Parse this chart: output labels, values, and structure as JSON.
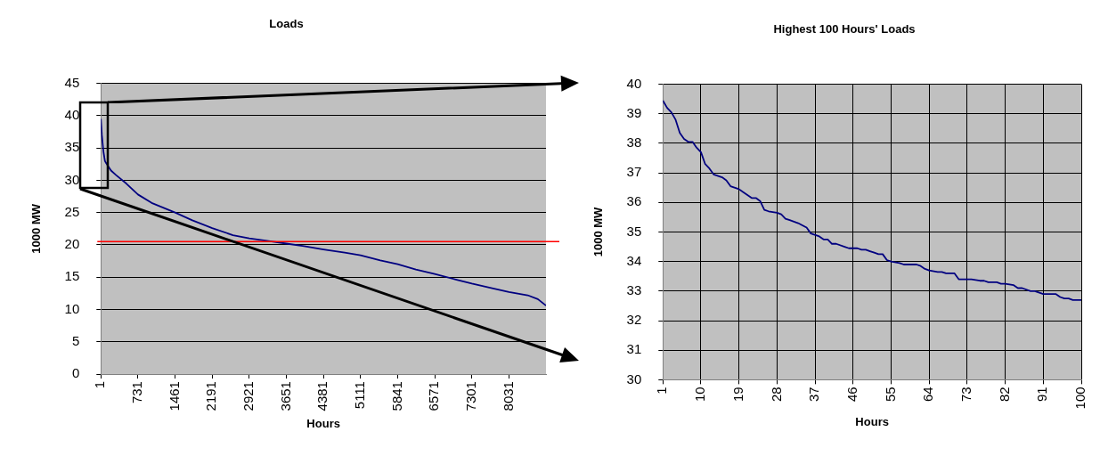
{
  "chart_data": [
    {
      "type": "line",
      "title": "Loads",
      "xlabel": "Hours",
      "ylabel": "1000 MW",
      "x": [
        1,
        20,
        50,
        80,
        100,
        200,
        300,
        500,
        730,
        1000,
        1461,
        1800,
        2191,
        2600,
        2921,
        3300,
        3651,
        4000,
        4381,
        4800,
        5111,
        5500,
        5841,
        6200,
        6571,
        7000,
        7301,
        7700,
        8031,
        8400,
        8600,
        8760
      ],
      "series": [
        {
          "color": "#000080",
          "values": [
            39.5,
            37,
            34.5,
            33,
            32.7,
            31.5,
            30.8,
            29.5,
            27.8,
            26.5,
            25,
            23.8,
            22.6,
            21.5,
            21,
            20.6,
            20.2,
            19.8,
            19.3,
            18.8,
            18.4,
            17.6,
            17,
            16.2,
            15.5,
            14.6,
            14,
            13.3,
            12.7,
            12.2,
            11.6,
            10.6
          ]
        }
      ],
      "xlim": [
        1,
        8760
      ],
      "xticks": [
        1,
        731,
        1461,
        2191,
        2921,
        3651,
        4381,
        5111,
        5841,
        6571,
        7301,
        8031
      ],
      "ylim": [
        0,
        45
      ],
      "yticks": [
        0,
        5,
        10,
        15,
        20,
        25,
        30,
        35,
        40,
        45
      ],
      "ref_lines": [
        {
          "axis": "y",
          "value": 20.5,
          "color": "#ff0000"
        }
      ],
      "grid": "y",
      "legend": false,
      "marker": "none",
      "line_style": "solid"
    },
    {
      "type": "line",
      "title": "Highest 100 Hours' Loads",
      "xlabel": "Hours",
      "ylabel": "1000 MW",
      "x": [
        1,
        2,
        3,
        4,
        5,
        6,
        7,
        8,
        9,
        10,
        11,
        12,
        13,
        15,
        16,
        17,
        19,
        20,
        22,
        23,
        24,
        25,
        26,
        28,
        29,
        30,
        31,
        33,
        35,
        36,
        38,
        39,
        40,
        41,
        42,
        44,
        45,
        47,
        48,
        49,
        50,
        51,
        52,
        53,
        54,
        55,
        57,
        58,
        60,
        61,
        62,
        63,
        64,
        66,
        67,
        68,
        70,
        71,
        72,
        74,
        76,
        77,
        78,
        80,
        81,
        82,
        84,
        85,
        86,
        88,
        89,
        91,
        93,
        94,
        95,
        96,
        97,
        98,
        100
      ],
      "series": [
        {
          "color": "#000080",
          "values": [
            39.45,
            39.2,
            39.05,
            38.8,
            38.35,
            38.15,
            38.05,
            38.05,
            37.85,
            37.7,
            37.3,
            37.15,
            36.95,
            36.85,
            36.75,
            36.55,
            36.45,
            36.35,
            36.15,
            36.15,
            36.05,
            35.75,
            35.7,
            35.65,
            35.6,
            35.45,
            35.4,
            35.3,
            35.15,
            34.95,
            34.85,
            34.75,
            34.75,
            34.6,
            34.6,
            34.5,
            34.45,
            34.45,
            34.4,
            34.4,
            34.35,
            34.3,
            34.25,
            34.25,
            34.05,
            34,
            33.95,
            33.9,
            33.9,
            33.9,
            33.85,
            33.75,
            33.7,
            33.65,
            33.65,
            33.6,
            33.6,
            33.4,
            33.4,
            33.4,
            33.35,
            33.35,
            33.3,
            33.3,
            33.25,
            33.25,
            33.2,
            33.1,
            33.1,
            33,
            33,
            32.9,
            32.9,
            32.9,
            32.8,
            32.75,
            32.75,
            32.7,
            32.7
          ]
        }
      ],
      "xlim": [
        1,
        100
      ],
      "xticks": [
        1,
        10,
        19,
        28,
        37,
        46,
        55,
        64,
        73,
        82,
        91,
        100
      ],
      "ylim": [
        30,
        40
      ],
      "yticks": [
        30,
        31,
        32,
        33,
        34,
        35,
        36,
        37,
        38,
        39,
        40
      ],
      "grid": true,
      "legend": false,
      "marker": "none",
      "line_style": "solid"
    }
  ]
}
